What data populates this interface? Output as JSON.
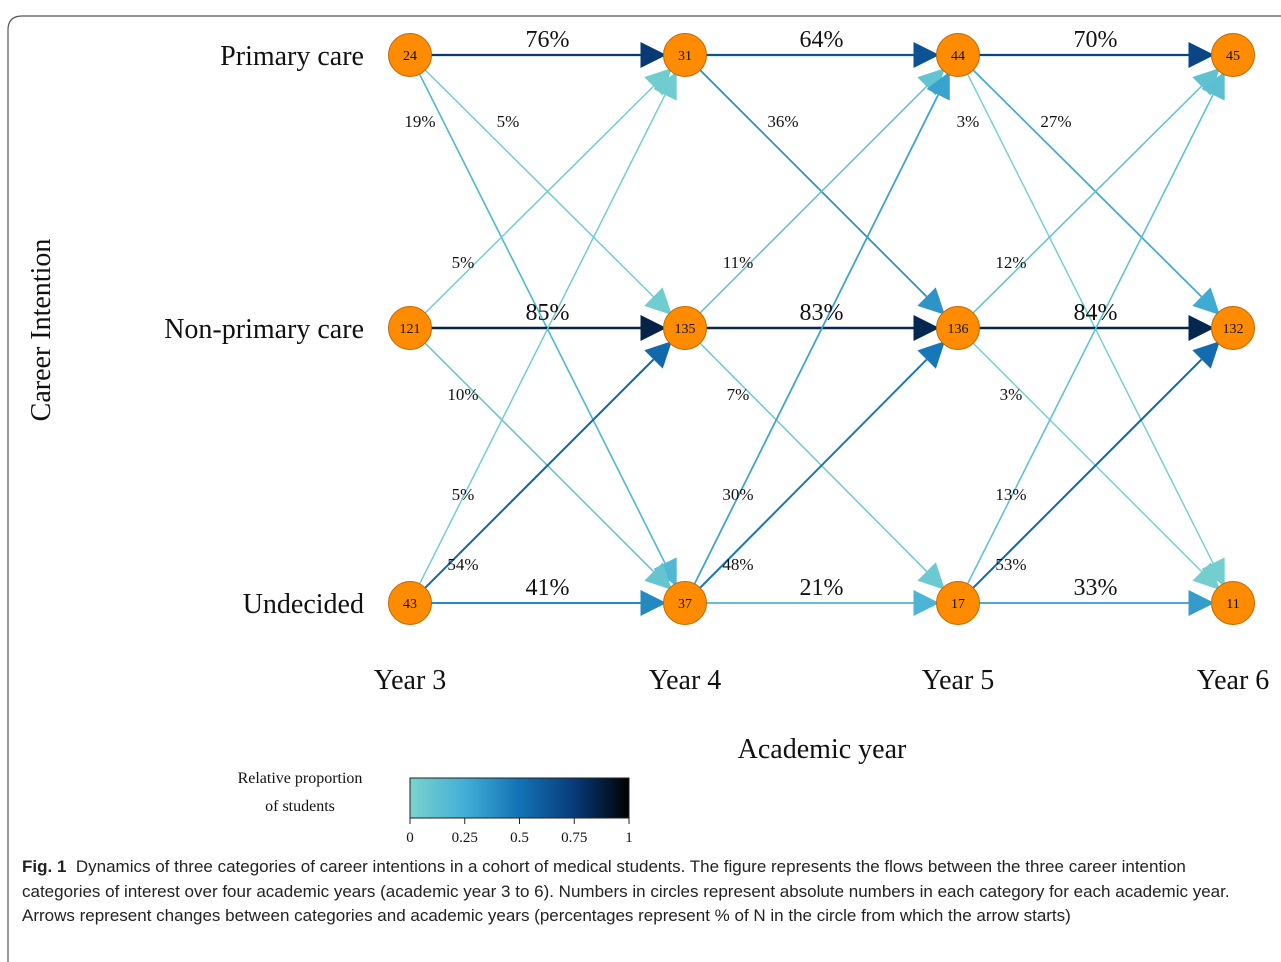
{
  "axis": {
    "y_title": "Career Intention",
    "x_title": "Academic year",
    "categories": [
      "Primary care",
      "Non-primary care",
      "Undecided"
    ],
    "years": [
      "Year 3",
      "Year 4",
      "Year 5",
      "Year 6"
    ]
  },
  "nodes": [
    {
      "year": 0,
      "cat": 0,
      "n": "24"
    },
    {
      "year": 0,
      "cat": 1,
      "n": "121"
    },
    {
      "year": 0,
      "cat": 2,
      "n": "43"
    },
    {
      "year": 1,
      "cat": 0,
      "n": "31"
    },
    {
      "year": 1,
      "cat": 1,
      "n": "135"
    },
    {
      "year": 1,
      "cat": 2,
      "n": "37"
    },
    {
      "year": 2,
      "cat": 0,
      "n": "44"
    },
    {
      "year": 2,
      "cat": 1,
      "n": "136"
    },
    {
      "year": 2,
      "cat": 2,
      "n": "17"
    },
    {
      "year": 3,
      "cat": 0,
      "n": "45"
    },
    {
      "year": 3,
      "cat": 1,
      "n": "132"
    },
    {
      "year": 3,
      "cat": 2,
      "n": "11"
    }
  ],
  "flows": [
    {
      "year": 0,
      "from": 0,
      "to": 0,
      "label": "76%",
      "value": 0.76
    },
    {
      "year": 0,
      "from": 0,
      "to": 1,
      "label": "5%",
      "value": 0.05
    },
    {
      "year": 0,
      "from": 0,
      "to": 2,
      "label": "19%",
      "value": 0.19
    },
    {
      "year": 0,
      "from": 1,
      "to": 0,
      "label": "5%",
      "value": 0.05
    },
    {
      "year": 0,
      "from": 1,
      "to": 1,
      "label": "85%",
      "value": 0.85
    },
    {
      "year": 0,
      "from": 1,
      "to": 2,
      "label": "10%",
      "value": 0.1
    },
    {
      "year": 0,
      "from": 2,
      "to": 0,
      "label": "5%",
      "value": 0.05
    },
    {
      "year": 0,
      "from": 2,
      "to": 1,
      "label": "54%",
      "value": 0.54
    },
    {
      "year": 0,
      "from": 2,
      "to": 2,
      "label": "41%",
      "value": 0.41
    },
    {
      "year": 1,
      "from": 0,
      "to": 0,
      "label": "64%",
      "value": 0.64
    },
    {
      "year": 1,
      "from": 0,
      "to": 1,
      "label": "36%",
      "value": 0.36
    },
    {
      "year": 1,
      "from": 1,
      "to": 0,
      "label": "11%",
      "value": 0.11
    },
    {
      "year": 1,
      "from": 1,
      "to": 1,
      "label": "83%",
      "value": 0.83
    },
    {
      "year": 1,
      "from": 1,
      "to": 2,
      "label": "7%",
      "value": 0.07
    },
    {
      "year": 1,
      "from": 2,
      "to": 0,
      "label": "30%",
      "value": 0.3
    },
    {
      "year": 1,
      "from": 2,
      "to": 1,
      "label": "48%",
      "value": 0.48
    },
    {
      "year": 1,
      "from": 2,
      "to": 2,
      "label": "21%",
      "value": 0.21
    },
    {
      "year": 2,
      "from": 0,
      "to": 0,
      "label": "70%",
      "value": 0.7
    },
    {
      "year": 2,
      "from": 0,
      "to": 1,
      "label": "27%",
      "value": 0.27
    },
    {
      "year": 2,
      "from": 0,
      "to": 2,
      "label": "3%",
      "value": 0.03
    },
    {
      "year": 2,
      "from": 1,
      "to": 0,
      "label": "12%",
      "value": 0.12
    },
    {
      "year": 2,
      "from": 1,
      "to": 1,
      "label": "84%",
      "value": 0.84
    },
    {
      "year": 2,
      "from": 1,
      "to": 2,
      "label": "3%",
      "value": 0.03
    },
    {
      "year": 2,
      "from": 2,
      "to": 0,
      "label": "13%",
      "value": 0.13
    },
    {
      "year": 2,
      "from": 2,
      "to": 1,
      "label": "53%",
      "value": 0.53
    },
    {
      "year": 2,
      "from": 2,
      "to": 2,
      "label": "33%",
      "value": 0.33
    }
  ],
  "colorbar": {
    "title_line1": "Relative proportion",
    "title_line2": "of students",
    "ticks": [
      {
        "value": 0,
        "label": "0"
      },
      {
        "value": 0.25,
        "label": "0.25"
      },
      {
        "value": 0.5,
        "label": "0.5"
      },
      {
        "value": 0.75,
        "label": "0.75"
      },
      {
        "value": 1,
        "label": "1"
      }
    ],
    "stops": [
      "#7ad3cd",
      "#43afd6",
      "#1372b5",
      "#083b7a",
      "#000000"
    ]
  },
  "colors": {
    "node_fill": "#ff8c00",
    "node_stroke": "#c26600",
    "frame": "#555555"
  },
  "caption": {
    "label": "Fig. 1",
    "text": "Dynamics of three categories of career intentions in a cohort of medical students. The figure represents the flows between the three career intention categories of interest over four academic years (academic year 3 to 6). Numbers in circles represent absolute numbers in each category for each academic year. Arrows represent changes between categories and academic years (percentages represent % of N in the circle from which the arrow starts)"
  }
}
